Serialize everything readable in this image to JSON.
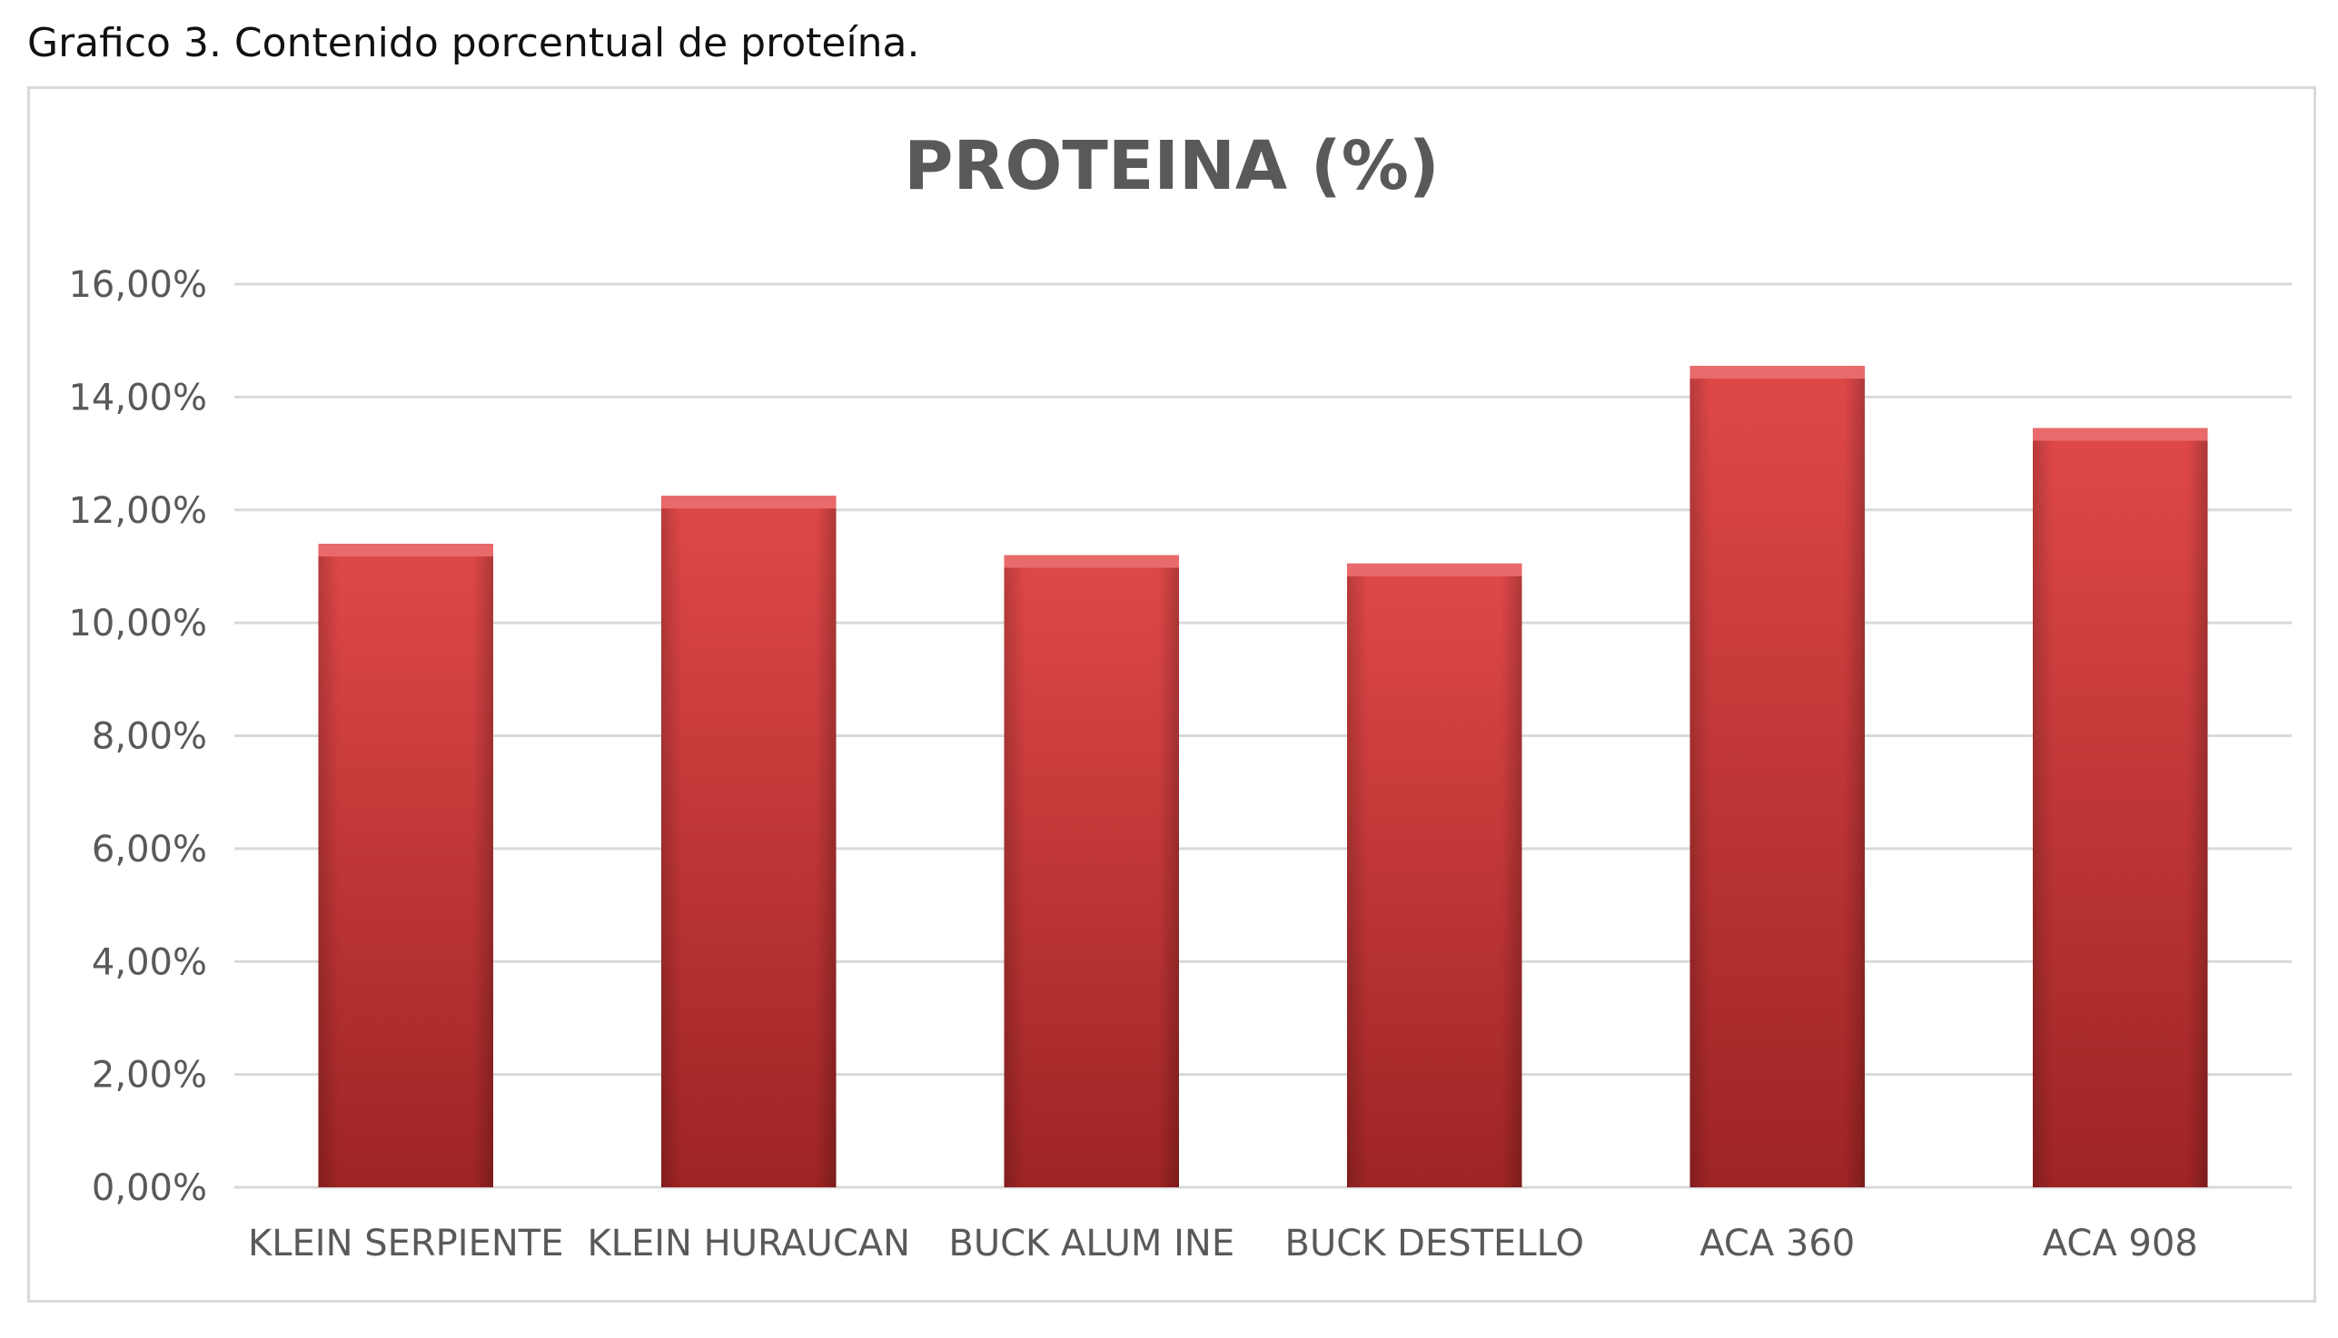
{
  "caption": "Grafico 3. Contenido porcentual de proteína.",
  "colors": {
    "bar_top": "#e04848",
    "bar_bottom": "#9e2424",
    "bar_cap": "#e86a6a",
    "gridline": "#d9d9d9",
    "text": "#595959"
  },
  "chart_data": {
    "type": "bar",
    "title": "PROTEINA (%)",
    "xlabel": "",
    "ylabel": "",
    "categories": [
      "KLEIN SERPIENTE",
      "KLEIN HURAUCAN",
      "BUCK ALUM INE",
      "BUCK DESTELLO",
      "ACA 360",
      "ACA 908"
    ],
    "values": [
      11.4,
      12.25,
      11.2,
      11.05,
      14.55,
      13.45
    ],
    "ylim": [
      0,
      16
    ],
    "yticks": [
      0,
      2,
      4,
      6,
      8,
      10,
      12,
      14,
      16
    ],
    "ytick_labels": [
      "0,00%",
      "2,00%",
      "4,00%",
      "6,00%",
      "8,00%",
      "10,00%",
      "12,00%",
      "14,00%",
      "16,00%"
    ],
    "grid": true,
    "legend": "none"
  }
}
